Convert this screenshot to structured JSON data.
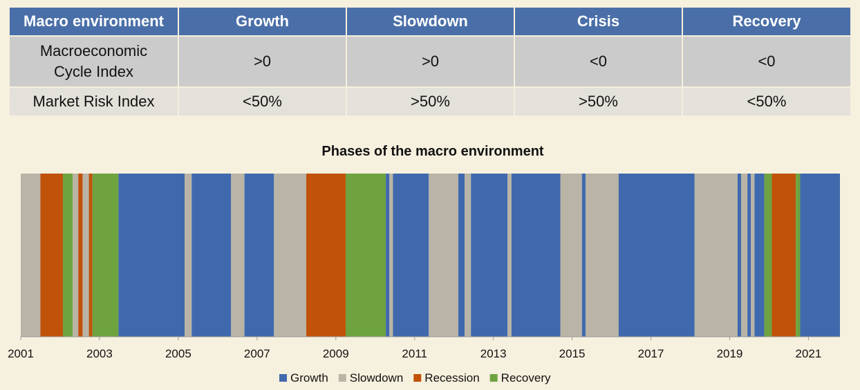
{
  "table": {
    "header": [
      "Macro environment",
      "Growth",
      "Slowdown",
      "Crisis",
      "Recovery"
    ],
    "rows": [
      {
        "label": "Macroeconomic Cycle Index",
        "values": [
          ">0",
          ">0",
          "<0",
          "<0"
        ]
      },
      {
        "label": "Market Risk Index",
        "values": [
          "<50%",
          ">50%",
          ">50%",
          "<50%"
        ]
      }
    ]
  },
  "colors": {
    "Growth": "#4069ad",
    "Slowdown": "#b9b4a6",
    "Recession": "#c0520a",
    "Recovery": "#6ea340"
  },
  "chart_data": {
    "type": "bar",
    "title": "Phases of the macro environment",
    "xlabel": "",
    "ylabel": "",
    "x_range": [
      2001.0,
      2021.8
    ],
    "x_ticks": [
      "2001",
      "2003",
      "2005",
      "2007",
      "2009",
      "2011",
      "2013",
      "2015",
      "2017",
      "2019",
      "2021"
    ],
    "legend": [
      "Growth",
      "Slowdown",
      "Recession",
      "Recovery"
    ],
    "legend_position": "bottom",
    "segments": [
      {
        "start": 2001.0,
        "end": 2001.5,
        "phase": "Slowdown"
      },
      {
        "start": 2001.5,
        "end": 2002.07,
        "phase": "Recession"
      },
      {
        "start": 2002.07,
        "end": 2002.32,
        "phase": "Recovery"
      },
      {
        "start": 2002.32,
        "end": 2002.46,
        "phase": "Slowdown"
      },
      {
        "start": 2002.46,
        "end": 2002.57,
        "phase": "Recession"
      },
      {
        "start": 2002.57,
        "end": 2002.73,
        "phase": "Slowdown"
      },
      {
        "start": 2002.73,
        "end": 2002.82,
        "phase": "Recession"
      },
      {
        "start": 2002.82,
        "end": 2003.48,
        "phase": "Recovery"
      },
      {
        "start": 2003.48,
        "end": 2005.16,
        "phase": "Growth"
      },
      {
        "start": 2005.16,
        "end": 2005.34,
        "phase": "Slowdown"
      },
      {
        "start": 2005.34,
        "end": 2006.34,
        "phase": "Growth"
      },
      {
        "start": 2006.34,
        "end": 2006.68,
        "phase": "Slowdown"
      },
      {
        "start": 2006.68,
        "end": 2007.43,
        "phase": "Growth"
      },
      {
        "start": 2007.43,
        "end": 2008.25,
        "phase": "Slowdown"
      },
      {
        "start": 2008.25,
        "end": 2009.25,
        "phase": "Recession"
      },
      {
        "start": 2009.25,
        "end": 2010.27,
        "phase": "Recovery"
      },
      {
        "start": 2010.27,
        "end": 2010.36,
        "phase": "Growth"
      },
      {
        "start": 2010.36,
        "end": 2010.45,
        "phase": "Slowdown"
      },
      {
        "start": 2010.45,
        "end": 2011.36,
        "phase": "Growth"
      },
      {
        "start": 2011.36,
        "end": 2012.11,
        "phase": "Slowdown"
      },
      {
        "start": 2012.11,
        "end": 2012.27,
        "phase": "Growth"
      },
      {
        "start": 2012.27,
        "end": 2012.43,
        "phase": "Slowdown"
      },
      {
        "start": 2012.43,
        "end": 2013.36,
        "phase": "Growth"
      },
      {
        "start": 2013.36,
        "end": 2013.46,
        "phase": "Slowdown"
      },
      {
        "start": 2013.46,
        "end": 2014.7,
        "phase": "Growth"
      },
      {
        "start": 2014.7,
        "end": 2015.25,
        "phase": "Slowdown"
      },
      {
        "start": 2015.25,
        "end": 2015.34,
        "phase": "Growth"
      },
      {
        "start": 2015.34,
        "end": 2016.18,
        "phase": "Slowdown"
      },
      {
        "start": 2016.18,
        "end": 2018.11,
        "phase": "Growth"
      },
      {
        "start": 2018.11,
        "end": 2019.2,
        "phase": "Slowdown"
      },
      {
        "start": 2019.2,
        "end": 2019.29,
        "phase": "Growth"
      },
      {
        "start": 2019.29,
        "end": 2019.45,
        "phase": "Slowdown"
      },
      {
        "start": 2019.45,
        "end": 2019.54,
        "phase": "Growth"
      },
      {
        "start": 2019.54,
        "end": 2019.63,
        "phase": "Slowdown"
      },
      {
        "start": 2019.63,
        "end": 2019.88,
        "phase": "Growth"
      },
      {
        "start": 2019.88,
        "end": 2020.07,
        "phase": "Recovery"
      },
      {
        "start": 2020.07,
        "end": 2020.68,
        "phase": "Recession"
      },
      {
        "start": 2020.68,
        "end": 2020.79,
        "phase": "Recovery"
      },
      {
        "start": 2020.79,
        "end": 2021.8,
        "phase": "Growth"
      }
    ]
  }
}
